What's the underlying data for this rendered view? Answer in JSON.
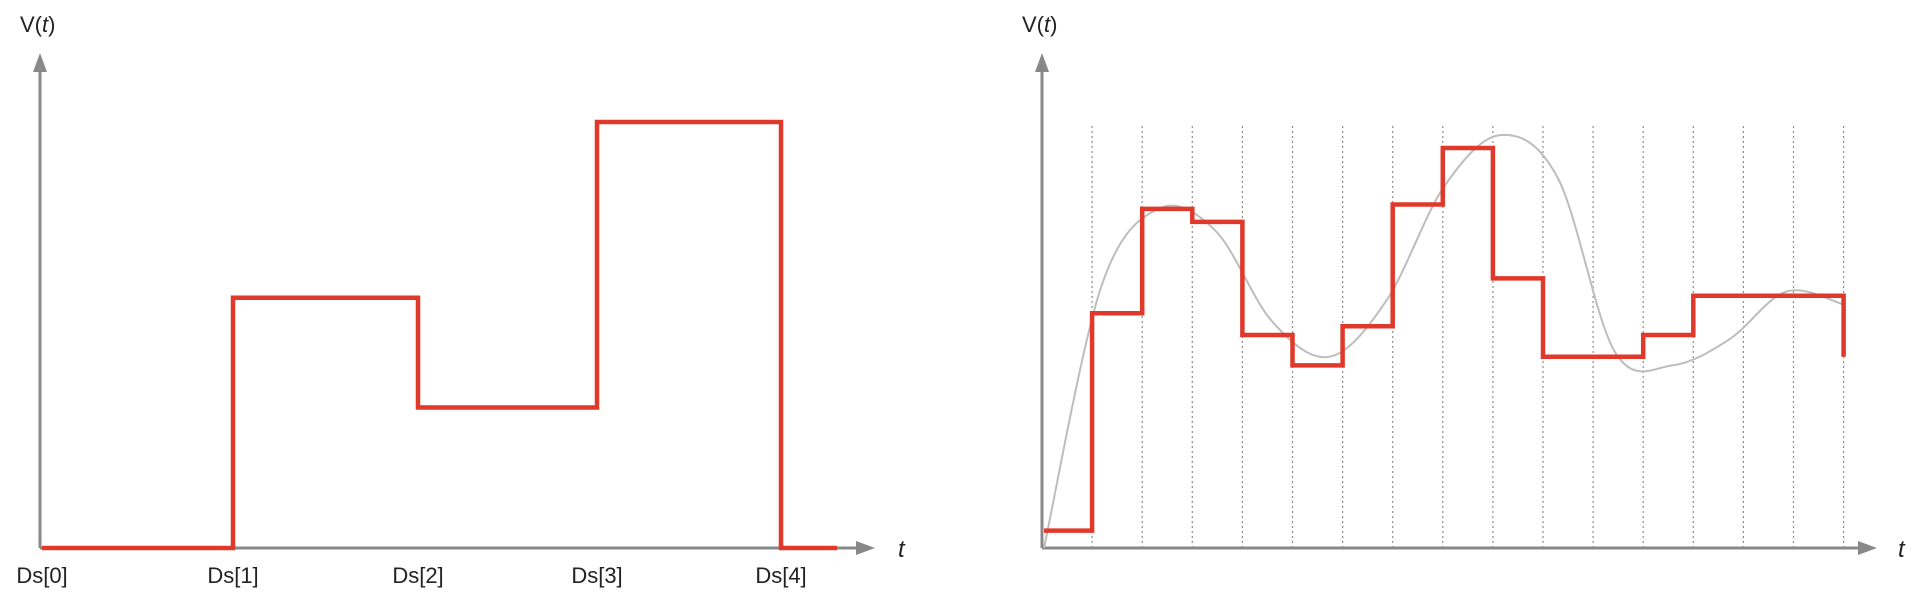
{
  "chart_data": [
    {
      "type": "line",
      "step": true,
      "ylabel_prefix": "V(",
      "ylabel_var": "t",
      "ylabel_suffix": ")",
      "xlabel": "t",
      "x_tick_labels": [
        "Ds[0]",
        "Ds[1]",
        "Ds[2]",
        "Ds[3]",
        "Ds[4]"
      ],
      "series": [
        {
          "color": "#e0382a",
          "values": [
            0,
            0.57,
            0.32,
            0.97,
            0
          ]
        }
      ],
      "ylim": [
        0,
        1
      ],
      "grid": false
    },
    {
      "type": "line",
      "step": true,
      "ylabel_prefix": "V(",
      "ylabel_var": "t",
      "ylabel_suffix": ")",
      "xlabel": "t",
      "grid": true,
      "series": [
        {
          "color": "#e0382a",
          "values": [
            0.04,
            0.54,
            0.78,
            0.75,
            0.49,
            0.42,
            0.51,
            0.79,
            0.92,
            0.62,
            0.44,
            0.44,
            0.49,
            0.58,
            0.58,
            0.58
          ]
        },
        {
          "color": "#bdbdbd",
          "smooth": true,
          "values": [
            0.0,
            0.6,
            0.78,
            0.73,
            0.52,
            0.44,
            0.57,
            0.83,
            0.95,
            0.85,
            0.45,
            0.42,
            0.48,
            0.59,
            0.56
          ]
        }
      ],
      "ylim": [
        0,
        1
      ]
    }
  ]
}
